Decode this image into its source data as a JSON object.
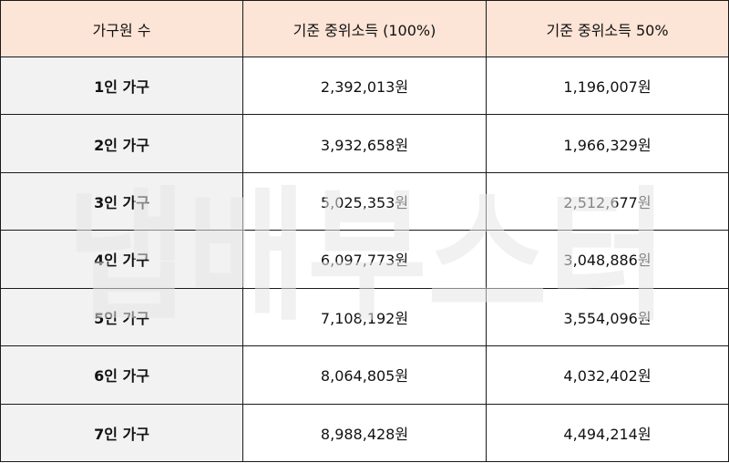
{
  "table": {
    "headers": [
      "가구원 수",
      "기준 중위소득 (100%)",
      "기준 중위소득 50%"
    ],
    "rows": [
      {
        "household": "1인 가구",
        "median_income": "2,392,013원",
        "half_income": "1,196,007원"
      },
      {
        "household": "2인 가구",
        "median_income": "3,932,658원",
        "half_income": "1,966,329원"
      },
      {
        "household": "3인 가구",
        "median_income": "5,025,353원",
        "half_income": "2,512,677원"
      },
      {
        "household": "4인 가구",
        "median_income": "6,097,773원",
        "half_income": "3,048,886원"
      },
      {
        "household": "5인 가구",
        "median_income": "7,108,192원",
        "half_income": "3,554,096원"
      },
      {
        "household": "6인 가구",
        "median_income": "8,064,805원",
        "half_income": "4,032,402원"
      },
      {
        "household": "7인 가구",
        "median_income": "8,988,428원",
        "half_income": "4,494,214원"
      }
    ]
  },
  "watermark": {
    "text": "냅배부스터",
    "color": "#e6e6e6"
  },
  "colors": {
    "header_bg": "#fce4d6",
    "row_label_bg": "#f2f2f2",
    "border": "#1a1a1a"
  }
}
